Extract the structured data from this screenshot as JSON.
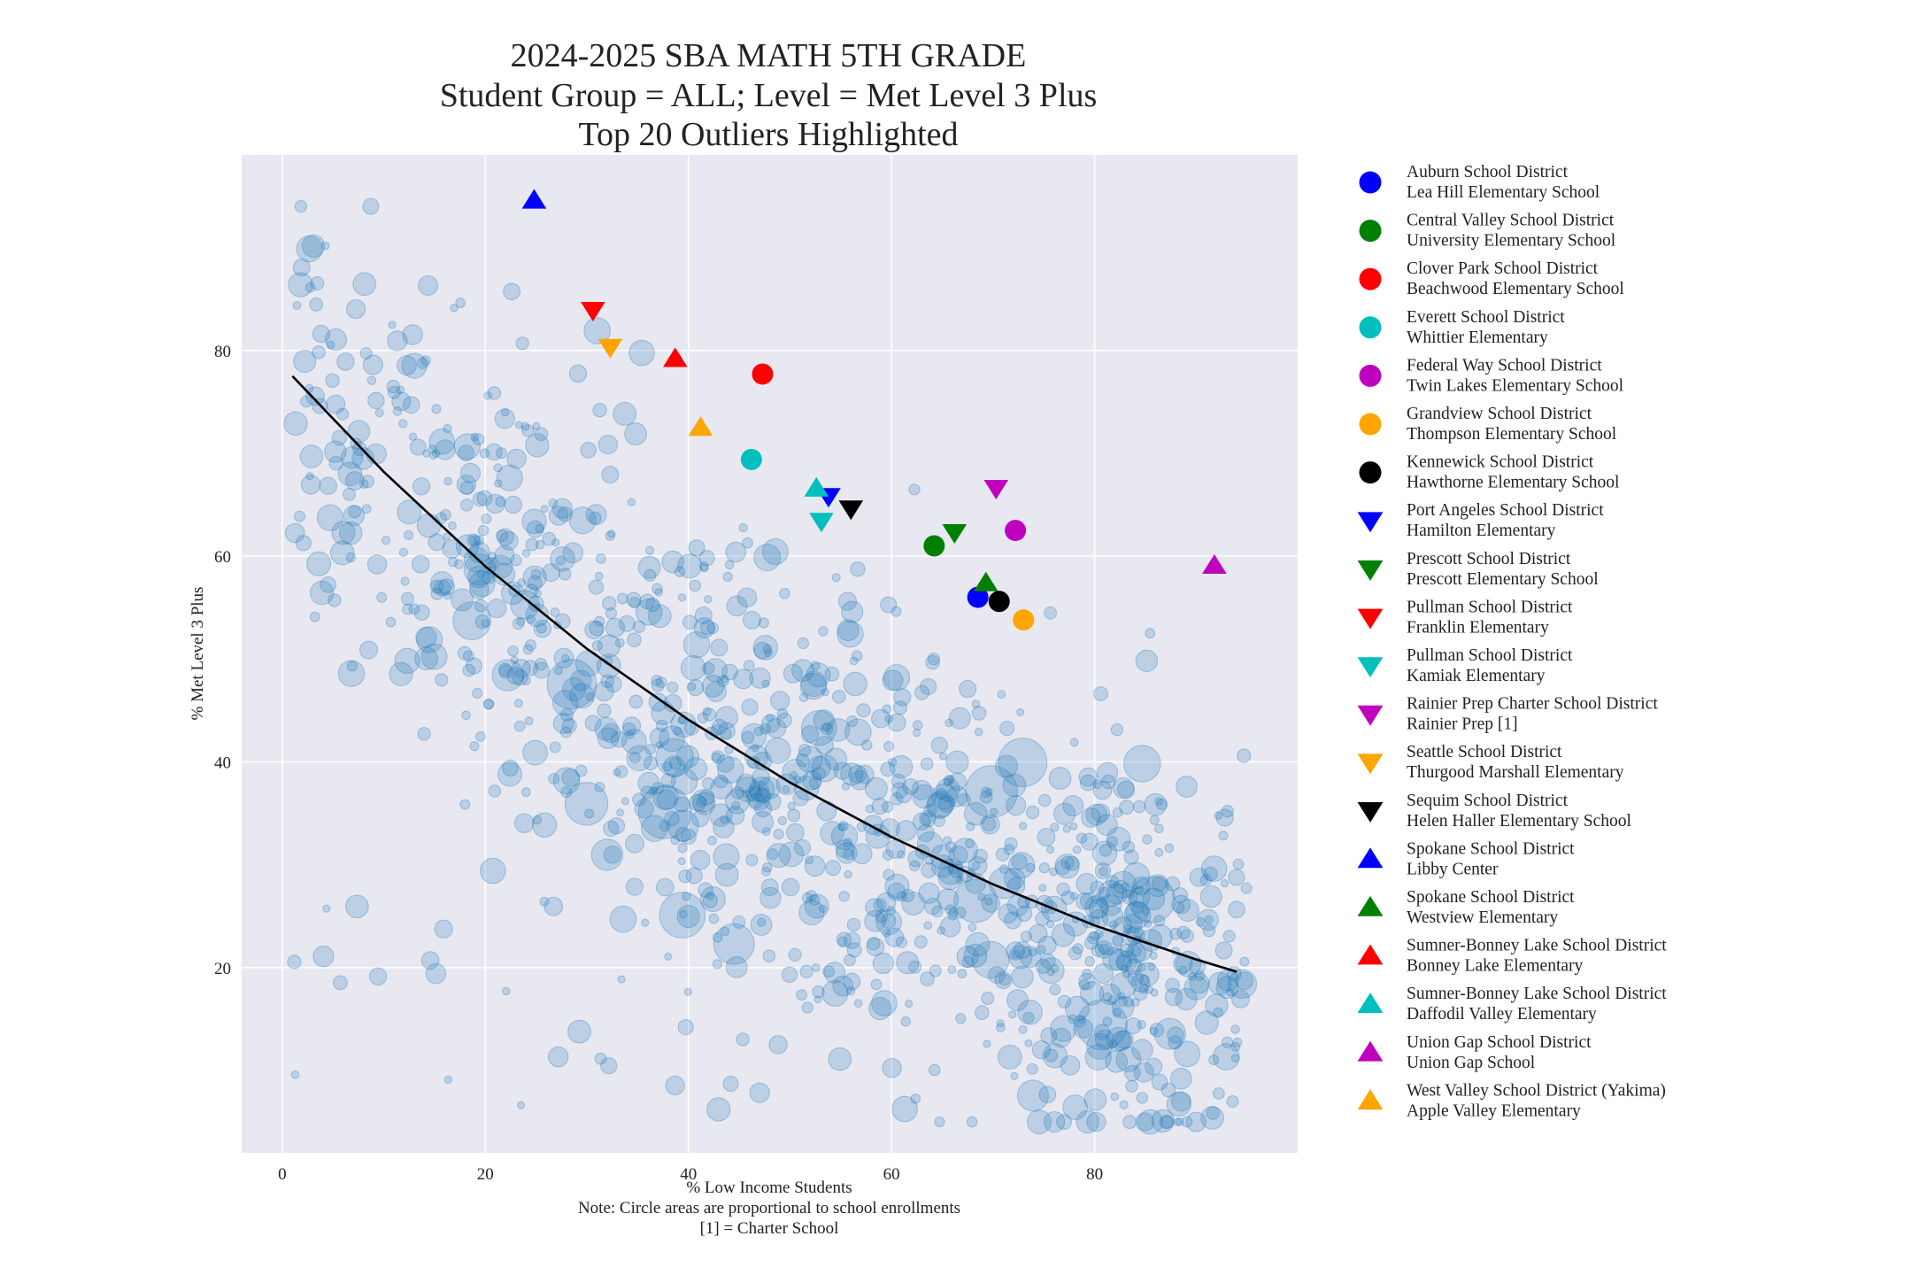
{
  "chart_data": {
    "type": "scatter",
    "title": [
      "2024-2025 SBA MATH 5TH GRADE",
      "Student Group = ALL; Level = Met Level 3 Plus",
      "Top 20 Outliers Highlighted"
    ],
    "xlabel": "% Low Income Students",
    "ylabel": "% Met Level 3 Plus",
    "notes": [
      "Note: Circle areas are proportional to school enrollments",
      "[1] = Charter School"
    ],
    "xlim": [
      -4,
      100
    ],
    "ylim": [
      2,
      99
    ],
    "xticks": [
      0,
      20,
      40,
      60,
      80
    ],
    "yticks": [
      20,
      40,
      60,
      80
    ],
    "grid": true,
    "legend_position": "outside-right",
    "background_color": "#e8e8f1",
    "background_point_color": "#1f77b4",
    "background_point_count": 1200,
    "trend_line": {
      "color": "#000000",
      "x": [
        1,
        10,
        20,
        30,
        40,
        50,
        60,
        70,
        80,
        90,
        94
      ],
      "y": [
        77.5,
        68.2,
        59,
        51,
        44.1,
        38,
        32.7,
        28.1,
        24.1,
        20.8,
        19.6
      ]
    },
    "marker_colors": {
      "blue": "#0000ff",
      "green": "#008000",
      "red": "#ff0000",
      "cyan": "#00bfbf",
      "magenta": "#bf00bf",
      "orange": "#ffa500",
      "black": "#000000"
    },
    "outliers": [
      {
        "district": "Auburn School District",
        "school": "Lea Hill Elementary School",
        "marker": "circle",
        "color": "blue",
        "x": 68.5,
        "y": 56
      },
      {
        "district": "Central Valley School District",
        "school": "University Elementary School",
        "marker": "circle",
        "color": "green",
        "x": 64.2,
        "y": 61
      },
      {
        "district": "Clover Park School District",
        "school": "Beachwood Elementary School",
        "marker": "circle",
        "color": "red",
        "x": 47.3,
        "y": 77.7
      },
      {
        "district": "Everett School District",
        "school": "Whittier Elementary",
        "marker": "circle",
        "color": "cyan",
        "x": 46.2,
        "y": 69.4
      },
      {
        "district": "Federal Way School District",
        "school": "Twin Lakes Elementary School",
        "marker": "circle",
        "color": "magenta",
        "x": 72.2,
        "y": 62.5
      },
      {
        "district": "Grandview School District",
        "school": "Thompson Elementary School",
        "marker": "circle",
        "color": "orange",
        "x": 73,
        "y": 53.8
      },
      {
        "district": "Kennewick School District",
        "school": "Hawthorne Elementary School",
        "marker": "circle",
        "color": "black",
        "x": 70.6,
        "y": 55.6
      },
      {
        "district": "Port Angeles School District",
        "school": "Hamilton Elementary",
        "marker": "triangle-down",
        "color": "blue",
        "x": 53.8,
        "y": 65.8
      },
      {
        "district": "Prescott School District",
        "school": "Prescott Elementary School",
        "marker": "triangle-down",
        "color": "green",
        "x": 66.2,
        "y": 62.3
      },
      {
        "district": "Pullman School District",
        "school": "Franklin Elementary",
        "marker": "triangle-down",
        "color": "red",
        "x": 30.6,
        "y": 83.9
      },
      {
        "district": "Pullman School District",
        "school": "Kamiak Elementary",
        "marker": "triangle-down",
        "color": "cyan",
        "x": 53.1,
        "y": 63.4
      },
      {
        "district": "Rainier Prep Charter School District",
        "school": "Rainier Prep [1]",
        "marker": "triangle-down",
        "color": "magenta",
        "x": 70.3,
        "y": 66.6
      },
      {
        "district": "Seattle School District",
        "school": "Thurgood Marshall Elementary",
        "marker": "triangle-down",
        "color": "orange",
        "x": 32.3,
        "y": 80.3
      },
      {
        "district": "Sequim School District",
        "school": "Helen Haller Elementary School",
        "marker": "triangle-down",
        "color": "black",
        "x": 56,
        "y": 64.6
      },
      {
        "district": "Spokane School District",
        "school": "Libby Center",
        "marker": "triangle-up",
        "color": "blue",
        "x": 24.8,
        "y": 94.6
      },
      {
        "district": "Spokane School District",
        "school": "Westview Elementary",
        "marker": "triangle-up",
        "color": "green",
        "x": 69.3,
        "y": 57.4
      },
      {
        "district": "Sumner-Bonney Lake School District",
        "school": "Bonney Lake Elementary",
        "marker": "triangle-up",
        "color": "red",
        "x": 38.7,
        "y": 79.2
      },
      {
        "district": "Sumner-Bonney Lake School District",
        "school": "Daffodil Valley Elementary",
        "marker": "triangle-up",
        "color": "cyan",
        "x": 52.6,
        "y": 66.6
      },
      {
        "district": "Union Gap School District",
        "school": "Union Gap School",
        "marker": "triangle-up",
        "color": "magenta",
        "x": 91.8,
        "y": 59.1
      },
      {
        "district": "West Valley School District (Yakima)",
        "school": "Apple Valley Elementary",
        "marker": "triangle-up",
        "color": "orange",
        "x": 41.2,
        "y": 72.5
      }
    ]
  }
}
